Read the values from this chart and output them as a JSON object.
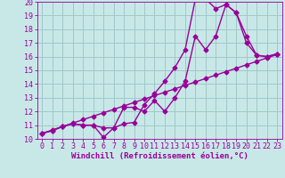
{
  "background_color": "#c8e8e8",
  "grid_color": "#a0c8c8",
  "line_color": "#990099",
  "marker": "D",
  "markersize": 2.5,
  "linewidth": 1.0,
  "xlim": [
    -0.5,
    23.5
  ],
  "ylim": [
    10,
    20
  ],
  "xlabel": "Windchill (Refroidissement éolien,°C)",
  "xlabel_fontsize": 6.5,
  "tick_fontsize": 6,
  "series1_x": [
    0,
    1,
    2,
    3,
    4,
    5,
    6,
    7,
    8,
    9,
    10,
    11,
    12,
    13,
    14,
    15,
    16,
    17,
    18,
    19,
    20,
    21,
    22,
    23
  ],
  "series1_y": [
    10.4,
    10.6,
    10.9,
    11.1,
    11.0,
    11.0,
    10.8,
    10.8,
    11.1,
    11.2,
    12.5,
    13.3,
    14.2,
    15.2,
    16.5,
    20.2,
    20.2,
    19.5,
    19.8,
    19.2,
    17.0,
    16.1,
    16.0,
    16.2
  ],
  "series2_x": [
    0,
    1,
    2,
    3,
    4,
    5,
    6,
    7,
    8,
    9,
    10,
    11,
    12,
    13,
    14,
    15,
    16,
    17,
    18,
    19,
    20,
    21,
    22,
    23
  ],
  "series2_y": [
    10.4,
    10.6,
    10.9,
    11.1,
    11.0,
    11.0,
    10.1,
    10.8,
    12.3,
    12.3,
    12.0,
    12.8,
    12.0,
    13.0,
    14.2,
    17.5,
    16.5,
    17.5,
    19.8,
    19.2,
    17.5,
    16.1,
    16.0,
    16.2
  ],
  "series3_x": [
    0,
    1,
    2,
    3,
    4,
    5,
    6,
    7,
    8,
    9,
    10,
    11,
    12,
    13,
    14,
    15,
    16,
    17,
    18,
    19,
    20,
    21,
    22,
    23
  ],
  "series3_y": [
    10.4,
    10.65,
    10.9,
    11.15,
    11.4,
    11.65,
    11.9,
    12.15,
    12.4,
    12.65,
    12.9,
    13.15,
    13.4,
    13.65,
    13.9,
    14.15,
    14.4,
    14.65,
    14.9,
    15.15,
    15.4,
    15.65,
    15.9,
    16.15
  ],
  "yticks": [
    10,
    11,
    12,
    13,
    14,
    15,
    16,
    17,
    18,
    19,
    20
  ],
  "xticks": [
    0,
    1,
    2,
    3,
    4,
    5,
    6,
    7,
    8,
    9,
    10,
    11,
    12,
    13,
    14,
    15,
    16,
    17,
    18,
    19,
    20,
    21,
    22,
    23
  ]
}
